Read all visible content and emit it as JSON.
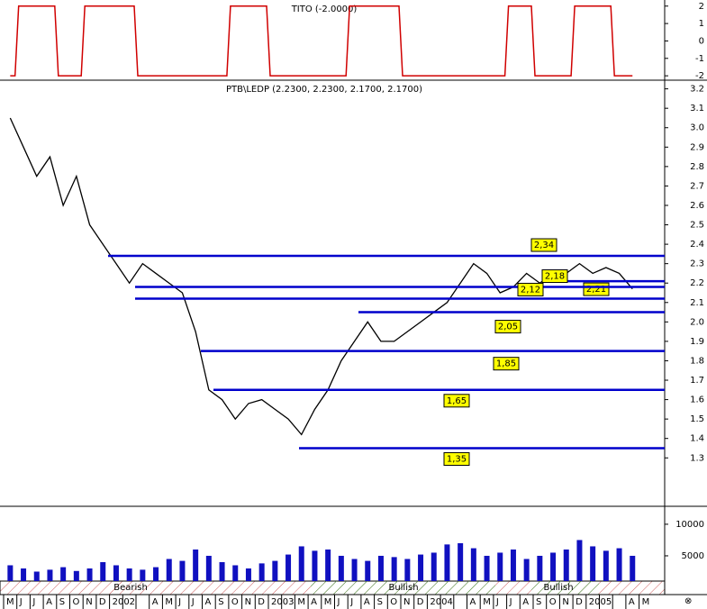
{
  "chart_data": [
    {
      "type": "step",
      "title": "TITO (-2.0000)",
      "color": "#d00000",
      "values": [
        -2,
        2,
        2,
        2,
        -2,
        -2,
        2,
        2,
        2,
        2,
        -2,
        -2,
        -2,
        -2,
        -2,
        -2,
        -2,
        2,
        2,
        2,
        -2,
        -2,
        -2,
        -2,
        -2,
        -2,
        2,
        2,
        2,
        2,
        -2,
        -2,
        -2,
        -2,
        -2,
        -2,
        -2,
        -2,
        2,
        2,
        -2,
        -2,
        -2,
        2,
        2,
        2,
        -2,
        -2,
        null
      ],
      "ylim": [
        -2.2,
        2.35
      ],
      "yticks": [
        2,
        1,
        0,
        -1,
        -2
      ]
    },
    {
      "type": "line",
      "title": "PTB\\LEDP (2.2300, 2.2300, 2.1700, 2.1700)",
      "color": "#000000",
      "values": [
        3.05,
        2.9,
        2.75,
        2.85,
        2.6,
        2.75,
        2.5,
        2.4,
        2.3,
        2.2,
        2.3,
        2.25,
        2.2,
        2.15,
        1.95,
        1.65,
        1.6,
        1.5,
        1.58,
        1.6,
        1.55,
        1.5,
        1.42,
        1.55,
        1.65,
        1.8,
        1.9,
        2.0,
        1.9,
        1.9,
        1.95,
        2.0,
        2.05,
        2.1,
        2.2,
        2.3,
        2.25,
        2.15,
        2.18,
        2.25,
        2.2,
        2.25,
        2.25,
        2.3,
        2.25,
        2.28,
        2.25,
        2.17,
        null
      ],
      "ylim": [
        1.06,
        3.24
      ],
      "yticks": [
        {
          "value": 3.2,
          "label": "3.2"
        },
        {
          "value": 3.1,
          "label": "3.1"
        },
        {
          "value": 3,
          "label": "3.0"
        },
        {
          "value": 2.9,
          "label": "2.9"
        },
        {
          "value": 2.8,
          "label": "2.8"
        },
        {
          "value": 2.7,
          "label": "2.7"
        },
        {
          "value": 2.6,
          "label": "2.6"
        },
        {
          "value": 2.5,
          "label": "2.5"
        },
        {
          "value": 2.4,
          "label": "2.4"
        },
        {
          "value": 2.3,
          "label": "2.3"
        },
        {
          "value": 2.2,
          "label": "2.2"
        },
        {
          "value": 2.1,
          "label": "2.1"
        },
        {
          "value": 2,
          "label": "2.0"
        },
        {
          "value": 1.9,
          "label": "1.9"
        },
        {
          "value": 1.8,
          "label": "1.8"
        },
        {
          "value": 1.7,
          "label": "1.7"
        },
        {
          "value": 1.6,
          "label": "1.6"
        },
        {
          "value": 1.5,
          "label": "1.5"
        },
        {
          "value": 1.4,
          "label": "1.4"
        },
        {
          "value": 1.3,
          "label": "1.3"
        }
      ],
      "levels": [
        2.34,
        2.21,
        2.18,
        2.12,
        2.05,
        1.85,
        1.65,
        1.35
      ],
      "level_labels": [
        "2,34",
        "2,21",
        "2,18",
        "2,12",
        "2,05",
        "1,85",
        "1,65",
        "1,35"
      ],
      "level_color": "#0000cc"
    },
    {
      "type": "bar",
      "color": "#1010c0",
      "values": [
        3500,
        3000,
        2500,
        2800,
        3200,
        2600,
        3000,
        4000,
        3500,
        3000,
        2800,
        3200,
        4500,
        4200,
        6000,
        5000,
        4000,
        3500,
        3000,
        3800,
        4200,
        5200,
        6500,
        5800,
        6000,
        5000,
        4500,
        4200,
        5000,
        4800,
        4500,
        5200,
        5500,
        6800,
        7000,
        6200,
        5000,
        5500,
        6000,
        4500,
        5000,
        5500,
        6000,
        7500,
        6500,
        5800,
        6200,
        5000,
        null
      ],
      "ylim": [
        1000,
        12700
      ],
      "yticks": [
        10000,
        5000
      ],
      "categories": [
        "M",
        "J",
        "J",
        "A",
        "S",
        "O",
        "N",
        "D",
        "2002",
        null,
        null,
        "A",
        "M",
        "J",
        "J",
        "A",
        "S",
        "O",
        "N",
        "D",
        "2003",
        null,
        "M",
        "A",
        "M",
        "J",
        "J",
        "A",
        "S",
        "O",
        "N",
        "D",
        "2004",
        null,
        null,
        "A",
        "M",
        "J",
        "J",
        "A",
        "S",
        "O",
        "N",
        "D",
        "2005",
        null,
        null,
        "A",
        "M"
      ],
      "annotations": [
        "Bearish",
        "Bullish",
        "Bullish"
      ]
    }
  ]
}
